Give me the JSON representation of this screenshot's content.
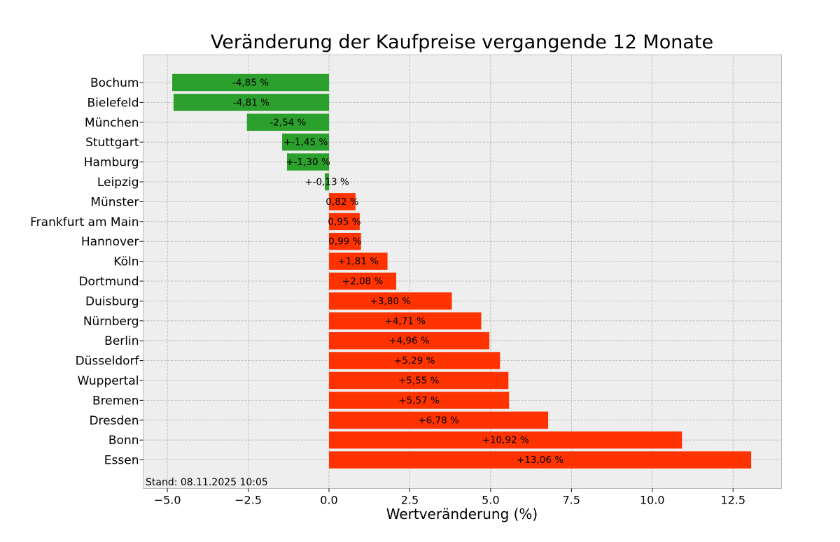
{
  "chart_data": {
    "type": "bar",
    "orientation": "horizontal",
    "title": "Veränderung der Kaufpreise vergangende 12 Monate",
    "xlabel": "Wertveränderung (%)",
    "ylabel": "",
    "xlim": [
      -5.75,
      14.0
    ],
    "xticks": [
      -5.0,
      -2.5,
      0.0,
      2.5,
      5.0,
      7.5,
      10.0,
      12.5
    ],
    "xtick_labels": [
      "−5.0",
      "−2.5",
      "0.0",
      "2.5",
      "5.0",
      "7.5",
      "10.0",
      "12.5"
    ],
    "grid": true,
    "categories": [
      "Bochum",
      "Bielefeld",
      "München",
      "Stuttgart",
      "Hamburg",
      "Leipzig",
      "Münster",
      "Frankfurt am Main",
      "Hannover",
      "Köln",
      "Dortmund",
      "Duisburg",
      "Nürnberg",
      "Berlin",
      "Düsseldorf",
      "Wuppertal",
      "Bremen",
      "Dresden",
      "Bonn",
      "Essen"
    ],
    "values": [
      -4.85,
      -4.81,
      -2.54,
      -1.45,
      -1.3,
      -0.13,
      0.82,
      0.95,
      0.99,
      1.81,
      2.08,
      3.8,
      4.71,
      4.96,
      5.29,
      5.55,
      5.57,
      6.78,
      10.92,
      13.06
    ],
    "data_labels": [
      "-4,85 %",
      "-4,81 %",
      "-2,54 %",
      "+-1,45 %",
      "+-1,30 %",
      "+-0,13 %",
      "0,82 %",
      "0,95 %",
      "0,99 %",
      "+1,81 %",
      "+2,08 %",
      "+3,80 %",
      "+4,71 %",
      "+4,96 %",
      "+5,29 %",
      "+5,55 %",
      "+5,57 %",
      "+6,78 %",
      "+10,92 %",
      "+13,06 %"
    ],
    "colors": {
      "negative": "#2ca02c",
      "positive": "#ff3300",
      "plot_background": "#eeeeee"
    },
    "annotation": "Stand: 08.11.2025 10:05"
  }
}
